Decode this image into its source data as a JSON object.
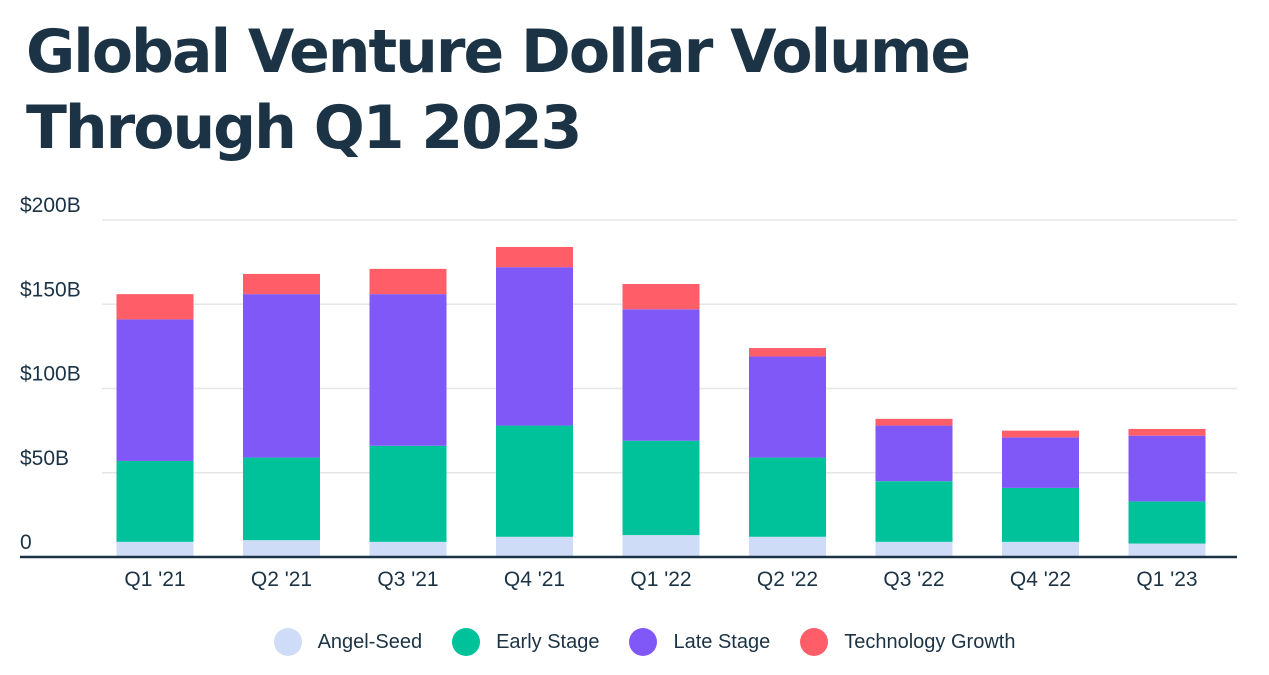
{
  "chart_data": {
    "type": "bar",
    "stacked": true,
    "title": "Global Venture Dollar Volume Through Q1 2023",
    "xlabel": "",
    "ylabel": "",
    "ylim": [
      0,
      200
    ],
    "yticks": [
      0,
      50,
      100,
      150,
      200
    ],
    "ytick_labels": [
      "0",
      "$50B",
      "$100B",
      "$150B",
      "$200B"
    ],
    "categories": [
      "Q1 '21",
      "Q2 '21",
      "Q3 '21",
      "Q4 '21",
      "Q1 '22",
      "Q2 '22",
      "Q3 '22",
      "Q4 '22",
      "Q1 '23"
    ],
    "series": [
      {
        "name": "Angel-Seed",
        "color": "#cfdcf8",
        "values": [
          9,
          10,
          9,
          12,
          13,
          12,
          9,
          9,
          8
        ]
      },
      {
        "name": "Early Stage",
        "color": "#00c29a",
        "values": [
          48,
          49,
          57,
          66,
          56,
          47,
          36,
          32,
          25
        ]
      },
      {
        "name": "Late Stage",
        "color": "#8158f8",
        "values": [
          84,
          97,
          90,
          94,
          78,
          60,
          33,
          30,
          39
        ]
      },
      {
        "name": "Technology Growth",
        "color": "#ff5d68",
        "values": [
          15,
          12,
          15,
          12,
          15,
          5,
          4,
          4,
          4
        ]
      }
    ],
    "legend_position": "bottom",
    "grid": true,
    "colors": {
      "text": "#1b3344",
      "grid": "#e6e6e6",
      "axis": "#1b3344"
    }
  }
}
